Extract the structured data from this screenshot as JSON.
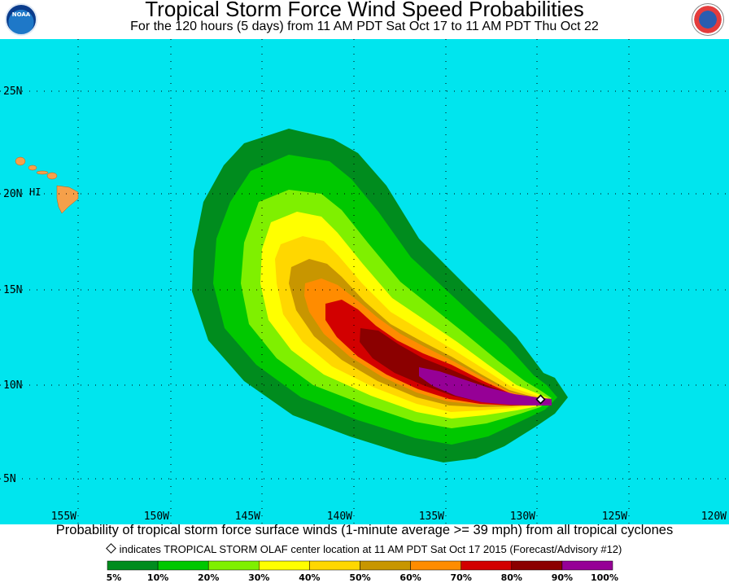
{
  "header": {
    "title": "Tropical Storm Force Wind Speed Probabilities",
    "subtitle": "For the 120 hours (5 days) from 11 AM PDT Sat Oct 17 to 11 AM PDT Thu Oct 22",
    "left_logo_icon": "noaa-logo",
    "left_logo_text": "NOAA",
    "right_logo_icon": "nws-logo"
  },
  "map": {
    "ocean_color": "#00e5ee",
    "land_color": "#f5a04a",
    "lat_labels": [
      "25N",
      "20N",
      "15N",
      "10N",
      "5N"
    ],
    "lon_labels": [
      "155W",
      "150W",
      "145W",
      "140W",
      "135W",
      "130W",
      "125W",
      "120W"
    ],
    "place_label": "HI",
    "storm_marker_icon": "diamond-marker-icon"
  },
  "caption": "Probability of tropical storm force surface winds (1-minute average >= 39 mph) from all tropical cyclones",
  "marker_note": "indicates TROPICAL STORM OLAF center location at 11 AM PDT Sat Oct 17 2015 (Forecast/Advisory #12)",
  "legend": {
    "colors": [
      "#008c1e",
      "#00c800",
      "#7ff000",
      "#ffff00",
      "#ffd700",
      "#c89600",
      "#ff8c00",
      "#d20000",
      "#8b0000",
      "#960096"
    ],
    "labels": [
      "5%",
      "10%",
      "20%",
      "30%",
      "40%",
      "50%",
      "60%",
      "70%",
      "80%",
      "90%",
      "100%"
    ]
  }
}
